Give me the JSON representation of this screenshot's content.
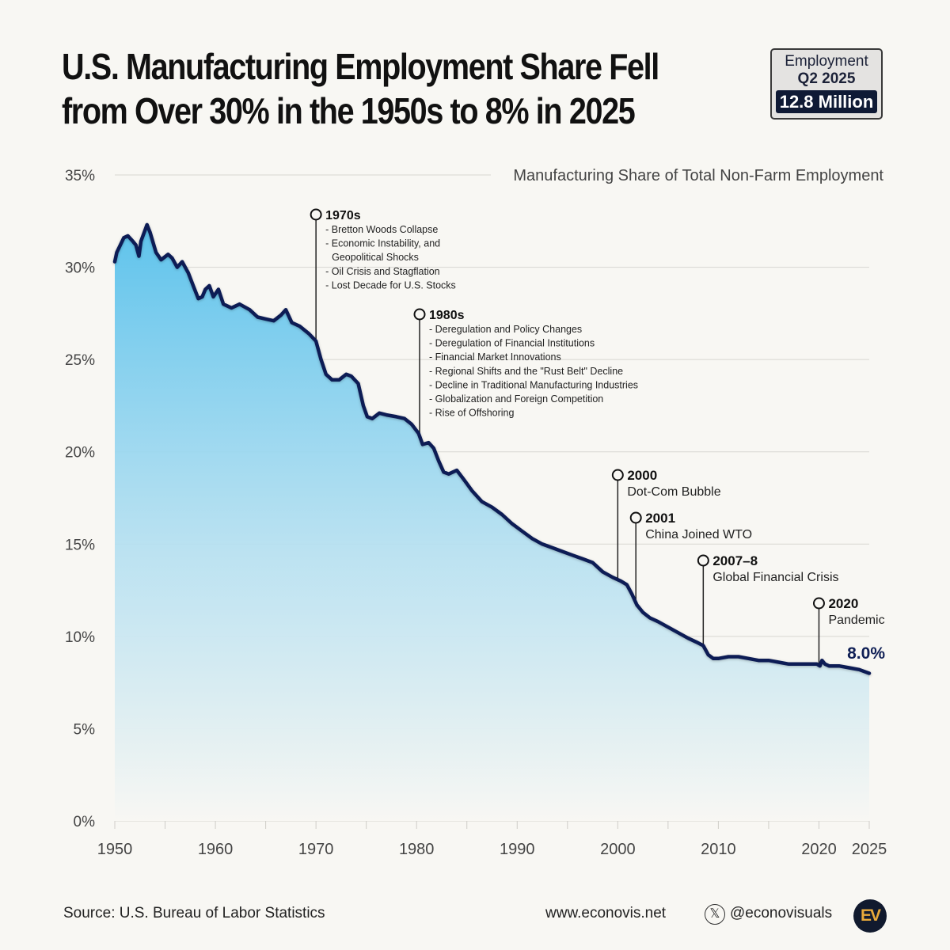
{
  "header": {
    "title_line1": "U.S. Manufacturing Employment Share Fell",
    "title_line2": "from Over 30% in the 1950s to 8% in 2025"
  },
  "badge": {
    "line1": "Employment",
    "line2": "Q2 2025",
    "value": "12.8 Million"
  },
  "footer": {
    "source": "Source: U.S. Bureau of Labor Statistics",
    "website": "www.econovis.net",
    "handle": "@econovisuals",
    "logo_text": "EV",
    "x_icon": "x-logo-icon"
  },
  "colors": {
    "line": "#0f1f55",
    "fill_top": "#5ec3ec",
    "fill_bottom": "#f8f7f3",
    "background": "#f8f7f3",
    "logo_bg": "#111a2e",
    "logo_fg": "#e8a93a"
  },
  "chart_data": {
    "type": "area",
    "title": "Manufacturing Share of Total Non-Farm Employment",
    "xlabel": "",
    "ylabel": "",
    "xlim": [
      1950,
      2025
    ],
    "ylim": [
      0,
      35
    ],
    "grid": true,
    "y_ticks": [
      0,
      5,
      10,
      15,
      20,
      25,
      30,
      35
    ],
    "y_tick_labels": [
      "0%",
      "5%",
      "10%",
      "15%",
      "20%",
      "25%",
      "30%",
      "35%"
    ],
    "x_ticks": [
      1950,
      1960,
      1970,
      1980,
      1990,
      2000,
      2010,
      2020,
      2025
    ],
    "x_tick_labels": [
      "1950",
      "1960",
      "1970",
      "1980",
      "1990",
      "2000",
      "2010",
      "2020",
      "2025"
    ],
    "end_label": "8.0%",
    "series": [
      {
        "name": "Manufacturing share (%)",
        "x": [
          1950.0,
          1950.2,
          1950.9,
          1951.3,
          1951.8,
          1952.1,
          1952.4,
          1952.6,
          1953.2,
          1953.5,
          1954.1,
          1954.6,
          1955.3,
          1955.7,
          1956.2,
          1956.7,
          1957.3,
          1957.8,
          1958.3,
          1958.7,
          1959.0,
          1959.4,
          1959.8,
          1960.3,
          1960.8,
          1961.6,
          1962.4,
          1963.4,
          1964.2,
          1965.0,
          1965.8,
          1966.5,
          1967.0,
          1967.6,
          1968.4,
          1969.3,
          1970.0,
          1970.5,
          1971.0,
          1971.6,
          1972.3,
          1973.0,
          1973.5,
          1974.2,
          1974.7,
          1975.1,
          1975.6,
          1976.3,
          1977.0,
          1978.0,
          1978.8,
          1979.5,
          1980.2,
          1980.6,
          1981.2,
          1981.7,
          1982.2,
          1982.7,
          1983.2,
          1984.0,
          1984.7,
          1985.5,
          1986.5,
          1987.5,
          1988.5,
          1989.5,
          1990.5,
          1991.5,
          1992.5,
          1993.5,
          1994.5,
          1995.5,
          1996.5,
          1997.5,
          1998.5,
          1999.5,
          2000.3,
          2000.9,
          2001.4,
          2001.9,
          2002.5,
          2003.2,
          2004.0,
          2005.0,
          2006.0,
          2007.0,
          2007.8,
          2008.5,
          2009.0,
          2009.5,
          2010.0,
          2011.0,
          2012.0,
          2013.0,
          2014.0,
          2015.0,
          2016.0,
          2017.0,
          2018.0,
          2019.0,
          2019.8,
          2020.1,
          2020.3,
          2020.6,
          2021.0,
          2022.0,
          2023.0,
          2024.0,
          2025.0
        ],
        "y": [
          30.3,
          30.8,
          31.6,
          31.7,
          31.4,
          31.2,
          30.6,
          31.4,
          32.3,
          31.9,
          30.8,
          30.4,
          30.7,
          30.5,
          30.0,
          30.3,
          29.7,
          29.0,
          28.3,
          28.4,
          28.8,
          29.0,
          28.4,
          28.8,
          28.0,
          27.8,
          28.0,
          27.7,
          27.3,
          27.2,
          27.1,
          27.4,
          27.7,
          27.0,
          26.8,
          26.4,
          26.0,
          25.0,
          24.2,
          23.9,
          23.9,
          24.2,
          24.1,
          23.7,
          22.5,
          21.9,
          21.8,
          22.1,
          22.0,
          21.9,
          21.8,
          21.5,
          21.0,
          20.4,
          20.5,
          20.2,
          19.5,
          18.9,
          18.8,
          19.0,
          18.5,
          17.9,
          17.3,
          17.0,
          16.6,
          16.1,
          15.7,
          15.3,
          15.0,
          14.8,
          14.6,
          14.4,
          14.2,
          14.0,
          13.5,
          13.2,
          13.0,
          12.8,
          12.3,
          11.7,
          11.3,
          11.0,
          10.8,
          10.5,
          10.2,
          9.9,
          9.7,
          9.5,
          9.0,
          8.8,
          8.8,
          8.9,
          8.9,
          8.8,
          8.7,
          8.7,
          8.6,
          8.5,
          8.5,
          8.5,
          8.5,
          8.4,
          8.7,
          8.5,
          8.4,
          8.4,
          8.3,
          8.2,
          8.0
        ]
      }
    ],
    "annotations": [
      {
        "year": 1970,
        "label": "1970s",
        "items": [
          "- Bretton Woods Collapse",
          "- Economic Instability, and",
          "  Geopolitical Shocks",
          "- Oil Crisis and Stagflation",
          "- Lost Decade for U.S. Stocks"
        ]
      },
      {
        "year": 1980.3,
        "label": "1980s",
        "items": [
          "- Deregulation and Policy Changes",
          "- Deregulation of Financial Institutions",
          "- Financial Market Innovations",
          "- Regional Shifts and the \"Rust Belt\" Decline",
          "- Decline in Traditional Manufacturing Industries",
          "- Globalization and Foreign Competition",
          "- Rise of Offshoring"
        ]
      },
      {
        "year": 2000,
        "label": "2000",
        "desc": "Dot-Com Bubble"
      },
      {
        "year": 2001.8,
        "label": "2001",
        "desc": "China Joined WTO"
      },
      {
        "year": 2008.5,
        "label": "2007–8",
        "desc": "Global Financial Crisis"
      },
      {
        "year": 2020,
        "label": "2020",
        "desc": "Pandemic"
      }
    ]
  }
}
